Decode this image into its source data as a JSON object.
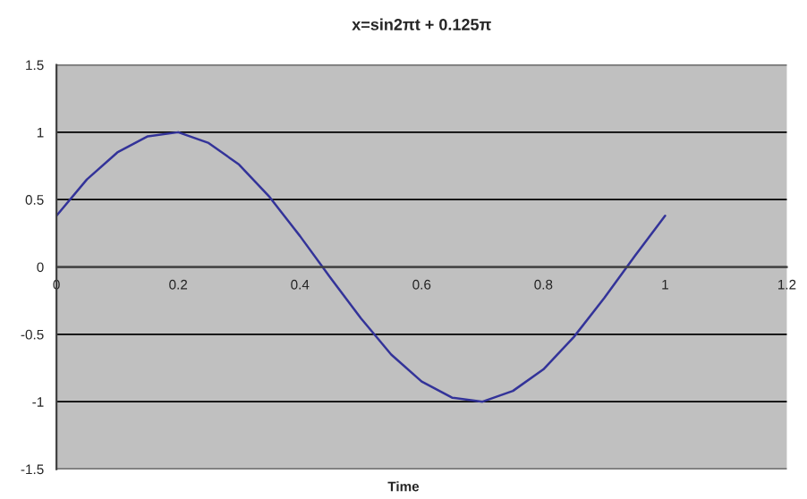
{
  "chart_data": {
    "type": "line",
    "title": "x=sin2πt + 0.125π",
    "xlabel": "Time",
    "x": [
      0,
      0.05,
      0.1,
      0.15,
      0.2,
      0.25,
      0.3,
      0.35,
      0.4,
      0.45,
      0.5,
      0.55,
      0.6,
      0.65,
      0.7,
      0.75,
      0.8,
      0.85,
      0.9,
      0.95,
      1.0
    ],
    "series": [
      {
        "color": "#333399",
        "values": [
          0.38,
          0.65,
          0.85,
          0.97,
          1.0,
          0.92,
          0.76,
          0.52,
          0.23,
          -0.08,
          -0.38,
          -0.65,
          -0.85,
          -0.97,
          -1.0,
          -0.92,
          -0.76,
          -0.52,
          -0.23,
          0.08,
          0.38
        ]
      }
    ],
    "xlim": [
      0,
      1.2
    ],
    "xticks": [
      0,
      0.2,
      0.4,
      0.6,
      0.8,
      1,
      1.2
    ],
    "ylim": [
      -1.5,
      1.5
    ],
    "yticks": [
      -1.5,
      -1,
      -0.5,
      0,
      0.5,
      1,
      1.5
    ],
    "grid": "y",
    "legend": false,
    "marker": "none",
    "line_style": "solid"
  }
}
